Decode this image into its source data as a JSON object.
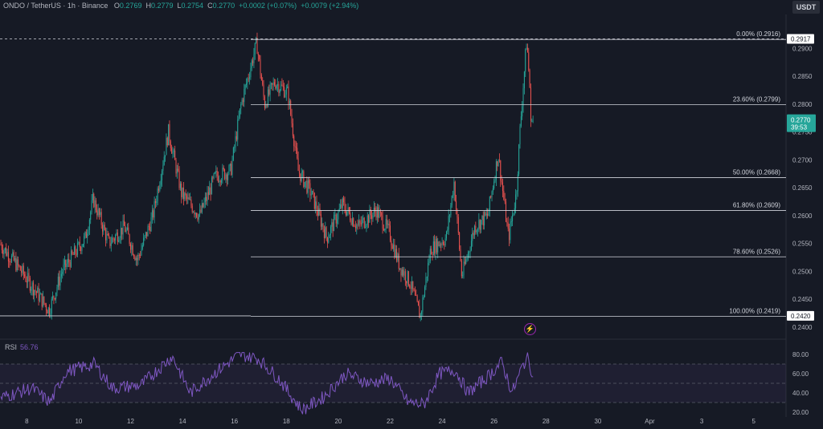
{
  "header": {
    "symbol": "ONDO / TetherUS · 1h · Binance",
    "open_label": "O",
    "open": "0.2769",
    "high_label": "H",
    "high": "0.2779",
    "low_label": "L",
    "low": "0.2754",
    "close_label": "C",
    "close": "0.2770",
    "change": "+0.0002 (+0.07%)",
    "change2": "+0.0079 (+2.94%)"
  },
  "currency": "USDT",
  "rsi": {
    "label": "RSI",
    "value": "56.76"
  },
  "colors": {
    "background": "#161a25",
    "up": "#26a69a",
    "down": "#ef5350",
    "fib_line": "#d1d4dc",
    "rsi_line": "#7e57c2",
    "rsi_band": "#7e57c2",
    "price_tag": "#26a69a"
  },
  "chart_data": [
    {
      "type": "candlestick",
      "title": "ONDO / TetherUS · 1h · Binance",
      "x_tick_labels": [
        "8",
        "10",
        "12",
        "14",
        "16",
        "18",
        "20",
        "22",
        "24",
        "26",
        "28",
        "30",
        "Apr",
        "3",
        "5"
      ],
      "y_ticks": [
        0.24,
        0.245,
        0.25,
        0.255,
        0.26,
        0.265,
        0.27,
        0.275,
        0.28,
        0.285,
        0.29
      ],
      "y_tick_labels": [
        "0.2400",
        "0.2450",
        "0.2500",
        "0.2550",
        "0.2600",
        "0.2650",
        "0.2700",
        "0.2750",
        "0.2800",
        "0.2850",
        "0.2900"
      ],
      "ylim": [
        0.2394,
        0.2935
      ],
      "price_key_points": [
        {
          "day": 7.0,
          "price": 0.255
        },
        {
          "day": 7.6,
          "price": 0.2515
        },
        {
          "day": 8.3,
          "price": 0.247
        },
        {
          "day": 8.9,
          "price": 0.243
        },
        {
          "day": 9.4,
          "price": 0.25
        },
        {
          "day": 10.3,
          "price": 0.256
        },
        {
          "day": 10.6,
          "price": 0.263
        },
        {
          "day": 11.2,
          "price": 0.255
        },
        {
          "day": 11.8,
          "price": 0.258
        },
        {
          "day": 12.3,
          "price": 0.252
        },
        {
          "day": 12.9,
          "price": 0.26
        },
        {
          "day": 13.5,
          "price": 0.275
        },
        {
          "day": 14.0,
          "price": 0.264
        },
        {
          "day": 14.7,
          "price": 0.26
        },
        {
          "day": 15.3,
          "price": 0.267
        },
        {
          "day": 15.9,
          "price": 0.268
        },
        {
          "day": 16.3,
          "price": 0.28
        },
        {
          "day": 16.9,
          "price": 0.291
        },
        {
          "day": 17.2,
          "price": 0.28
        },
        {
          "day": 17.6,
          "price": 0.284
        },
        {
          "day": 18.1,
          "price": 0.282
        },
        {
          "day": 18.5,
          "price": 0.268
        },
        {
          "day": 19.0,
          "price": 0.264
        },
        {
          "day": 19.6,
          "price": 0.256
        },
        {
          "day": 20.2,
          "price": 0.262
        },
        {
          "day": 20.8,
          "price": 0.258
        },
        {
          "day": 21.5,
          "price": 0.261
        },
        {
          "day": 22.0,
          "price": 0.257
        },
        {
          "day": 22.4,
          "price": 0.251
        },
        {
          "day": 22.8,
          "price": 0.248
        },
        {
          "day": 23.2,
          "price": 0.2419
        },
        {
          "day": 23.6,
          "price": 0.254
        },
        {
          "day": 24.2,
          "price": 0.256
        },
        {
          "day": 24.5,
          "price": 0.266
        },
        {
          "day": 24.8,
          "price": 0.249
        },
        {
          "day": 25.3,
          "price": 0.258
        },
        {
          "day": 25.8,
          "price": 0.26
        },
        {
          "day": 26.2,
          "price": 0.271
        },
        {
          "day": 26.6,
          "price": 0.256
        },
        {
          "day": 26.9,
          "price": 0.264
        },
        {
          "day": 27.05,
          "price": 0.276
        },
        {
          "day": 27.3,
          "price": 0.2916
        },
        {
          "day": 27.5,
          "price": 0.277
        }
      ],
      "fib_levels": [
        {
          "label": "0.00% (0.2916)",
          "price": 0.2916
        },
        {
          "label": "23.60% (0.2799)",
          "price": 0.2799
        },
        {
          "label": "50.00% (0.2668)",
          "price": 0.2668
        },
        {
          "label": "61.80% (0.2609)",
          "price": 0.2609
        },
        {
          "label": "78.60% (0.2526)",
          "price": 0.2526
        },
        {
          "label": "100.00% (0.2419)",
          "price": 0.2419
        }
      ],
      "price_tags": [
        {
          "text": "0.2917",
          "price": 0.2917,
          "style": "white"
        },
        {
          "text": "0.2420",
          "price": 0.242,
          "style": "white"
        },
        {
          "text": "0.2770",
          "sub": "39:53",
          "price": 0.277,
          "style": "green"
        }
      ]
    },
    {
      "type": "line",
      "title": "RSI",
      "y_ticks": [
        20,
        40,
        60,
        80
      ],
      "y_tick_labels": [
        "20.00",
        "40.00",
        "60.00",
        "80.00"
      ],
      "ylim": [
        15,
        85
      ],
      "bands": [
        30,
        50,
        70
      ],
      "current": 56.76,
      "rsi_key_points": [
        {
          "day": 7.0,
          "value": 35
        },
        {
          "day": 8.2,
          "value": 45
        },
        {
          "day": 8.9,
          "value": 30
        },
        {
          "day": 9.5,
          "value": 62
        },
        {
          "day": 10.6,
          "value": 70
        },
        {
          "day": 11.3,
          "value": 45
        },
        {
          "day": 12.4,
          "value": 48
        },
        {
          "day": 13.6,
          "value": 78
        },
        {
          "day": 14.3,
          "value": 40
        },
        {
          "day": 15.2,
          "value": 60
        },
        {
          "day": 16.2,
          "value": 80
        },
        {
          "day": 16.9,
          "value": 76
        },
        {
          "day": 17.7,
          "value": 55
        },
        {
          "day": 18.6,
          "value": 22
        },
        {
          "day": 19.4,
          "value": 35
        },
        {
          "day": 20.3,
          "value": 60
        },
        {
          "day": 21.2,
          "value": 50
        },
        {
          "day": 22.0,
          "value": 55
        },
        {
          "day": 22.7,
          "value": 30
        },
        {
          "day": 23.3,
          "value": 28
        },
        {
          "day": 23.9,
          "value": 60
        },
        {
          "day": 24.5,
          "value": 64
        },
        {
          "day": 25.0,
          "value": 40
        },
        {
          "day": 25.8,
          "value": 58
        },
        {
          "day": 26.3,
          "value": 72
        },
        {
          "day": 26.7,
          "value": 40
        },
        {
          "day": 27.1,
          "value": 68
        },
        {
          "day": 27.3,
          "value": 78
        },
        {
          "day": 27.5,
          "value": 57
        }
      ]
    }
  ]
}
